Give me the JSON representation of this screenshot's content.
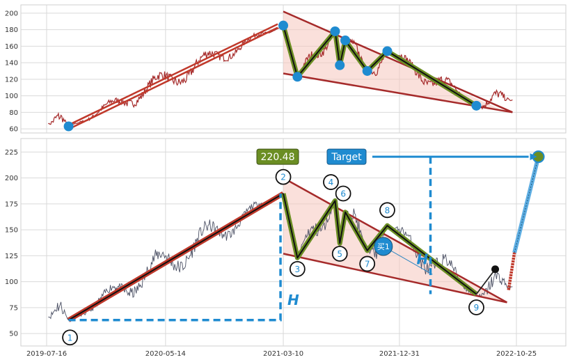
{
  "colors": {
    "price_top": "#a52a2a",
    "price_bottom": "#4a4f63",
    "trend": "#c0392b",
    "wedge_fill": "#f5c6be",
    "zigzag": "#6b8e23",
    "marker": "#1f8bd0",
    "grid": "#d9d9d9"
  },
  "chart_data": [
    {
      "type": "line",
      "name": "top-panel",
      "ylim": [
        55,
        210
      ],
      "yticks": [
        "60",
        "80",
        "100",
        "120",
        "140",
        "160",
        "180",
        "200"
      ],
      "ytick_values": [
        60,
        80,
        100,
        120,
        140,
        160,
        180,
        200
      ],
      "grid": true,
      "pivots": [
        {
          "date": "2019-09-10",
          "value": 63
        },
        {
          "date": "2021-03-10",
          "value": 185
        },
        {
          "date": "2021-04-15",
          "value": 123
        },
        {
          "date": "2021-07-20",
          "value": 178
        },
        {
          "date": "2021-08-01",
          "value": 137
        },
        {
          "date": "2021-08-15",
          "value": 167
        },
        {
          "date": "2021-10-10",
          "value": 130
        },
        {
          "date": "2021-11-30",
          "value": 154
        },
        {
          "date": "2022-07-15",
          "value": 88
        }
      ]
    },
    {
      "type": "line",
      "name": "bottom-panel",
      "ylim": [
        38,
        238
      ],
      "yticks": [
        "50",
        "75",
        "100",
        "125",
        "150",
        "175",
        "200",
        "225"
      ],
      "ytick_values": [
        50,
        75,
        100,
        125,
        150,
        175,
        200,
        225
      ],
      "xticks": [
        "2019-07-16",
        "2020-05-14",
        "2021-03-10",
        "2021-12-31",
        "2022-10-25"
      ],
      "grid": true,
      "pivot_labels": [
        "1",
        "2",
        "3",
        "4",
        "5",
        "6",
        "7",
        "8",
        "9"
      ],
      "pivots": [
        {
          "date": "2019-09-10",
          "value": 63
        },
        {
          "date": "2021-03-10",
          "value": 185
        },
        {
          "date": "2021-04-15",
          "value": 123
        },
        {
          "date": "2021-07-20",
          "value": 178
        },
        {
          "date": "2021-08-01",
          "value": 137
        },
        {
          "date": "2021-08-15",
          "value": 167
        },
        {
          "date": "2021-10-10",
          "value": 130
        },
        {
          "date": "2021-11-30",
          "value": 154
        },
        {
          "date": "2022-07-15",
          "value": 88
        }
      ],
      "upper_trendline": {
        "from": {
          "date": "2021-03-10",
          "value": 200
        },
        "to": {
          "date": "2022-10-01",
          "value": 80
        }
      },
      "lower_trendline": {
        "from": {
          "date": "2021-03-10",
          "value": 127
        },
        "to": {
          "date": "2022-10-01",
          "value": 80
        }
      },
      "buy_label": "买1",
      "buy_point": {
        "date": "2021-11-20",
        "value": 134
      },
      "target_label": "Target",
      "target_value_label": "220.48",
      "target": {
        "date": "2022-12-20",
        "value": 220.48
      },
      "height_label": "H"
    }
  ]
}
